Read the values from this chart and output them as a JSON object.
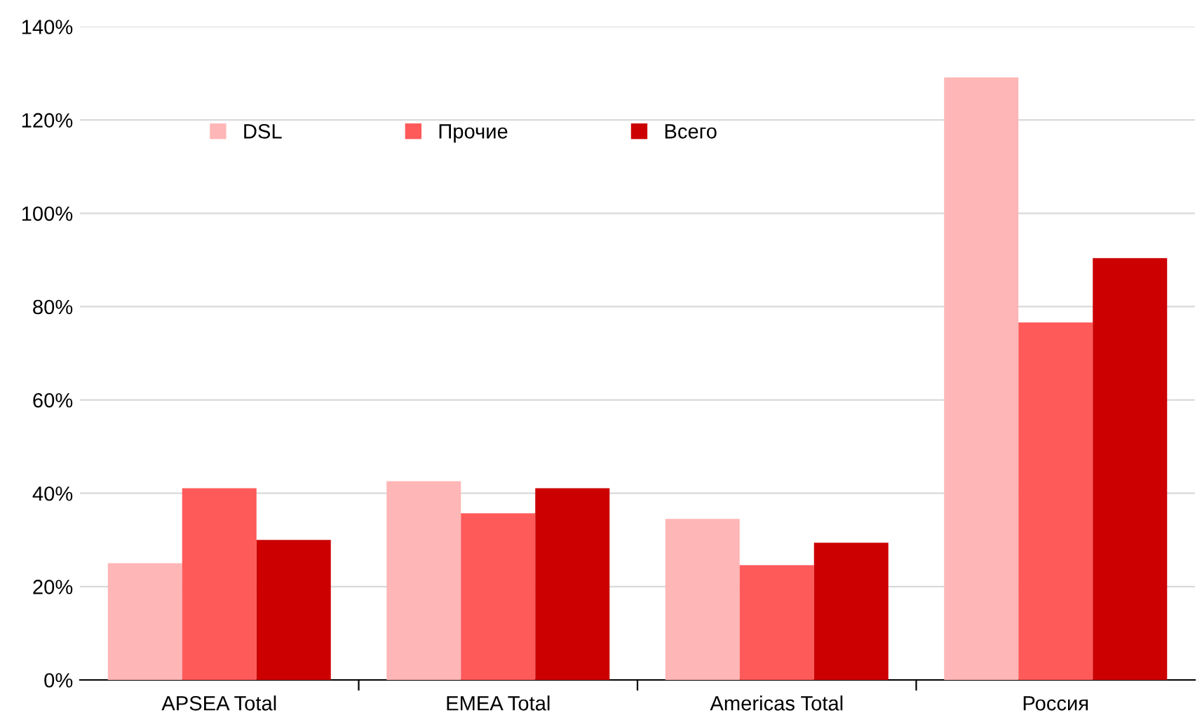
{
  "chart_data": {
    "type": "bar",
    "categories": [
      "APSEA Total",
      "EMEA Total",
      "Americas Total",
      "Россия"
    ],
    "series": [
      {
        "name": "DSL",
        "color": "#ffb6b6",
        "values": [
          25,
          42.6,
          34.5,
          129.1
        ]
      },
      {
        "name": "Прочие",
        "color": "#ff5a5a",
        "values": [
          41.1,
          35.7,
          24.6,
          76.6
        ]
      },
      {
        "name": "Всего",
        "color": "#cc0000",
        "values": [
          30,
          41.1,
          29.4,
          90.4
        ]
      }
    ],
    "ylim": [
      0,
      140
    ],
    "yticks": [
      {
        "value": 0,
        "label": "0%"
      },
      {
        "value": 20,
        "label": "20%"
      },
      {
        "value": 40,
        "label": "40%"
      },
      {
        "value": 60,
        "label": "60%"
      },
      {
        "value": 80,
        "label": "80%"
      },
      {
        "value": 100,
        "label": "100%"
      },
      {
        "value": 120,
        "label": "120%"
      },
      {
        "value": 140,
        "label": "140%"
      }
    ],
    "grid": "y",
    "legend": "top left"
  }
}
